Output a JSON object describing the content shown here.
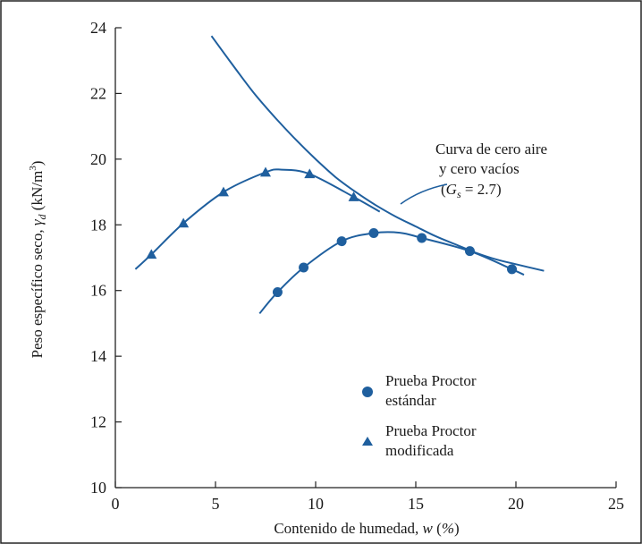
{
  "chart_data": {
    "type": "line",
    "xlabel": "Contenido de humedad, w (%)",
    "ylabel": "Peso específico seco, γd (kN/m³)",
    "xlim": [
      0,
      25
    ],
    "ylim": [
      10,
      24
    ],
    "x_ticks": [
      "0",
      "5",
      "10",
      "15",
      "20",
      "25"
    ],
    "y_ticks": [
      "10",
      "12",
      "14",
      "16",
      "18",
      "20",
      "22",
      "24"
    ],
    "grid": false,
    "legend_position": "bottom-right",
    "annotation": {
      "lines": [
        "Curva de cero aire",
        "y cero vacíos",
        "(Gs = 2.7)"
      ]
    },
    "series": [
      {
        "name": "Prueba Proctor estándar",
        "legend_lines": [
          "Prueba Proctor",
          "estándar"
        ],
        "marker": "circle",
        "color": "#1f5f9e",
        "points": [
          [
            8.1,
            15.95
          ],
          [
            9.4,
            16.7
          ],
          [
            11.3,
            17.5
          ],
          [
            12.9,
            17.75
          ],
          [
            15.3,
            17.6
          ],
          [
            17.7,
            17.2
          ],
          [
            19.8,
            16.65
          ]
        ],
        "curve": [
          [
            7.2,
            15.3
          ],
          [
            8.1,
            15.95
          ],
          [
            9.4,
            16.7
          ],
          [
            11.3,
            17.5
          ],
          [
            12.9,
            17.75
          ],
          [
            14.2,
            17.76
          ],
          [
            15.3,
            17.6
          ],
          [
            17.7,
            17.2
          ],
          [
            19.8,
            16.65
          ],
          [
            20.4,
            16.48
          ]
        ]
      },
      {
        "name": "Prueba Proctor modificada",
        "legend_lines": [
          "Prueba Proctor",
          "modificada"
        ],
        "marker": "triangle",
        "color": "#1f5f9e",
        "points": [
          [
            1.8,
            17.1
          ],
          [
            3.4,
            18.05
          ],
          [
            5.4,
            19.0
          ],
          [
            7.5,
            19.6
          ],
          [
            9.7,
            19.55
          ],
          [
            11.9,
            18.85
          ]
        ],
        "curve": [
          [
            1.0,
            16.65
          ],
          [
            1.8,
            17.1
          ],
          [
            3.4,
            18.05
          ],
          [
            5.4,
            19.0
          ],
          [
            7.5,
            19.6
          ],
          [
            8.3,
            19.68
          ],
          [
            9.7,
            19.55
          ],
          [
            11.9,
            18.85
          ],
          [
            13.2,
            18.4
          ]
        ]
      },
      {
        "name": "Curva de cero aire y cero vacíos",
        "marker": "none",
        "color": "#1f5f9e",
        "curve": [
          [
            4.8,
            23.75
          ],
          [
            6.0,
            22.75
          ],
          [
            7.0,
            21.95
          ],
          [
            8.0,
            21.25
          ],
          [
            9.0,
            20.6
          ],
          [
            10.0,
            20.0
          ],
          [
            11.0,
            19.45
          ],
          [
            12.0,
            19.0
          ],
          [
            13.0,
            18.6
          ],
          [
            14.0,
            18.25
          ],
          [
            15.0,
            17.95
          ],
          [
            16.0,
            17.65
          ],
          [
            17.0,
            17.4
          ],
          [
            18.0,
            17.15
          ],
          [
            19.0,
            16.95
          ],
          [
            20.0,
            16.8
          ],
          [
            21.4,
            16.6
          ]
        ]
      }
    ]
  }
}
